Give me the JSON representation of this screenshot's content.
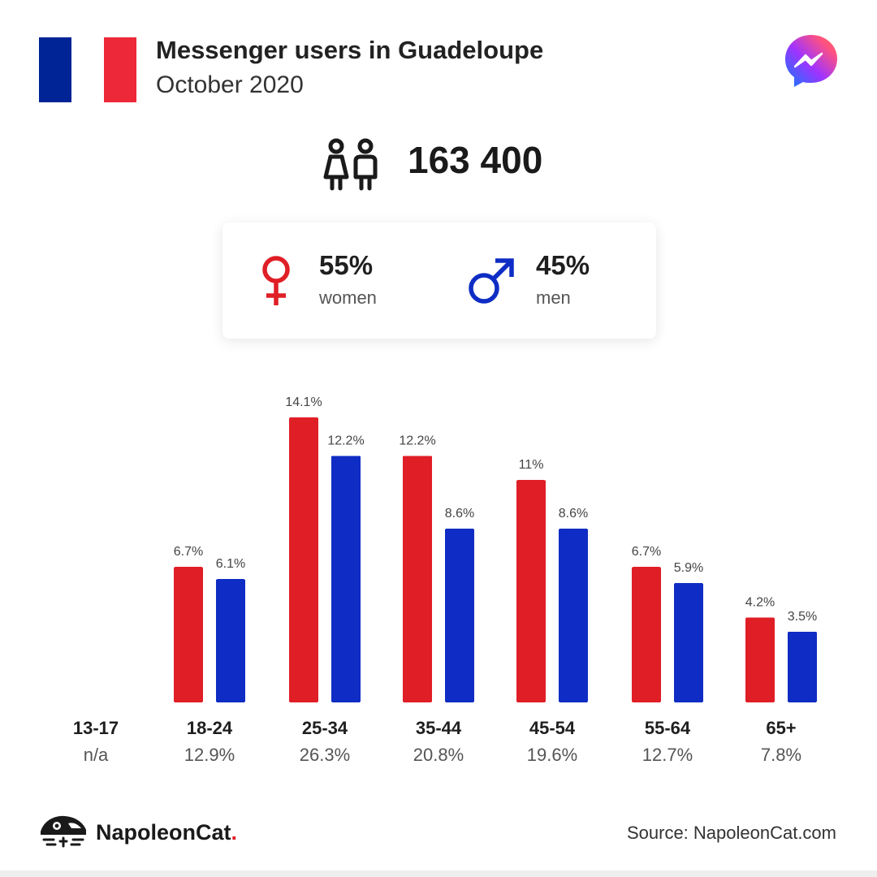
{
  "header": {
    "title": "Messenger users in Guadeloupe",
    "subtitle": "October 2020"
  },
  "flag": {
    "colors": [
      "#002395",
      "#ffffff",
      "#ED2939"
    ]
  },
  "logo": {
    "icon": "messenger-logo-icon"
  },
  "total": {
    "icon": "people-icon",
    "value": "163 400"
  },
  "gender": {
    "women": {
      "icon": "female-symbol-icon",
      "pct": "55%",
      "label": "women",
      "color": "#e01e26"
    },
    "men": {
      "icon": "male-symbol-icon",
      "pct": "45%",
      "label": "men",
      "color": "#0f2dc4"
    }
  },
  "chart_data": {
    "type": "bar",
    "categories": [
      "13-17",
      "18-24",
      "25-34",
      "35-44",
      "45-54",
      "55-64",
      "65+"
    ],
    "category_totals": [
      "n/a",
      "12.9%",
      "26.3%",
      "20.8%",
      "19.6%",
      "12.7%",
      "7.8%"
    ],
    "series": [
      {
        "name": "women",
        "color": "#e01e26",
        "values": [
          null,
          6.7,
          14.1,
          12.2,
          11,
          6.7,
          4.2
        ],
        "labels": [
          "",
          "6.7%",
          "14.1%",
          "12.2%",
          "11%",
          "6.7%",
          "4.2%"
        ]
      },
      {
        "name": "men",
        "color": "#0f2dc4",
        "values": [
          null,
          6.1,
          12.2,
          8.6,
          8.6,
          5.9,
          3.5
        ],
        "labels": [
          "",
          "6.1%",
          "12.2%",
          "8.6%",
          "8.6%",
          "5.9%",
          "3.5%"
        ]
      }
    ],
    "ylim": [
      0,
      14.1
    ],
    "grid": false
  },
  "footer": {
    "brand": "NapoleonCat",
    "brand_dot": ".",
    "brand_icon": "napoleoncat-logo-icon",
    "source": "Source: NapoleonCat.com"
  }
}
